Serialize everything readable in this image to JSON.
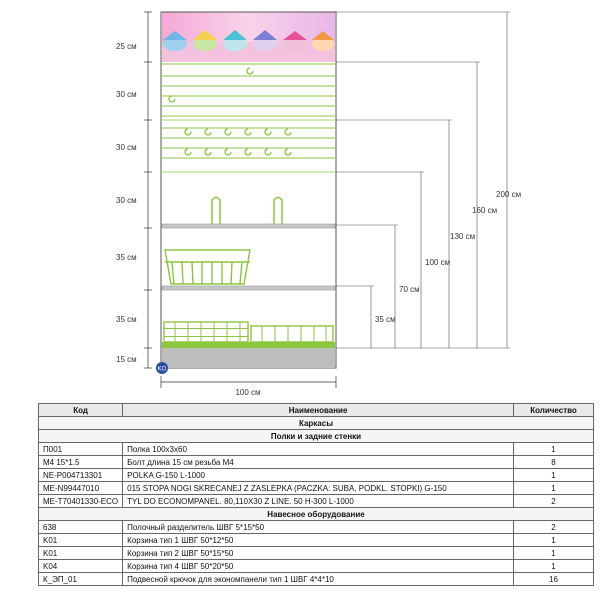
{
  "diagram": {
    "left_dims": [
      "25 см",
      "30 см",
      "30 см",
      "30 см",
      "35 см",
      "35 см",
      "15 см"
    ],
    "width_dim": "100 см",
    "height_dims": [
      "200 см",
      "160 см",
      "130 см",
      "100 см",
      "70 см",
      "35 см"
    ],
    "logo_text": "KO",
    "colors": {
      "green": "#8dc63f",
      "shelf_gray": "#c8c8c8",
      "base_gray": "#bdbdbd",
      "line": "#333333"
    }
  },
  "table": {
    "headers": {
      "code": "Код",
      "name": "Наименование",
      "qty": "Количество"
    },
    "sections": [
      {
        "title": "Каркасы",
        "rows": []
      },
      {
        "title": "Полки и задние стенки",
        "rows": [
          {
            "code": "П001",
            "name": "Полка 100х3х60",
            "qty": "1"
          },
          {
            "code": "М4 15*1.5",
            "name": "Болт длина 15 см резьба М4",
            "qty": "8"
          },
          {
            "code": "NE-P004713301",
            "name": "POLKA G-150 L-1000",
            "qty": "1"
          },
          {
            "code": "ME-N99447010",
            "name": "015 STOPA NOGI SKRECANEJ Z ZASLEPKA (PACZKA: SUBA, PODKL. STOPKI) G-150",
            "qty": "1"
          },
          {
            "code": "ME-T70401330-ECO",
            "name": "TYL DO ECONOMPANEL. 80,110X30 Z LINE. 50 H-300 L-1000",
            "qty": "2"
          }
        ]
      },
      {
        "title": "Навесное оборудование",
        "rows": [
          {
            "code": "638",
            "name": "Полочный разделитель ШВГ 5*15*50",
            "qty": "2"
          },
          {
            "code": "K01",
            "name": "Корзина тип 1 ШВГ 50*12*50",
            "qty": "1"
          },
          {
            "code": "K01",
            "name": "Корзина тип 2 ШВГ 50*15*50",
            "qty": "1"
          },
          {
            "code": "K04",
            "name": "Корзина тип 4 ШВГ 50*20*50",
            "qty": "1"
          },
          {
            "code": "К_ЭП_01",
            "name": "Подвесной крючок для экономпанели тип 1 ШВГ 4*4*10",
            "qty": "16"
          }
        ]
      }
    ]
  }
}
